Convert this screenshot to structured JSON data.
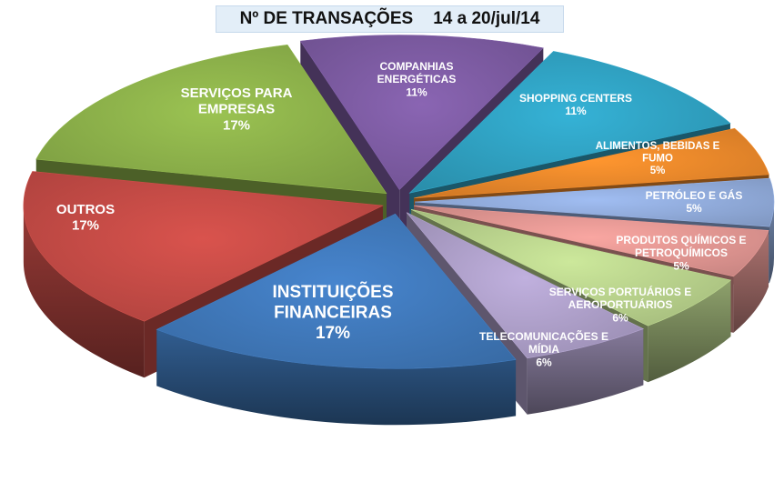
{
  "chart_data": {
    "type": "pie",
    "title": "Nº DE TRANSAÇÕES",
    "subtitle": "14 a 20/jul/14",
    "slices": [
      {
        "label": "COMPANHIAS ENERGÉTICAS",
        "value_label": "11%",
        "value": 11,
        "color": "#7b5aa0"
      },
      {
        "label": "SHOPPING CENTERS",
        "value_label": "11%",
        "value": 11,
        "color": "#2f9fbf"
      },
      {
        "label": "ALIMENTOS, BEBIDAS E FUMO",
        "value_label": "5%",
        "value": 5,
        "color": "#e8862a"
      },
      {
        "label": "PETRÓLEO E GÁS",
        "value_label": "5%",
        "value": 5,
        "color": "#8fa9d8"
      },
      {
        "label": "PRODUTOS QUÍMICOS E PETROQUÍMICOS",
        "value_label": "5%",
        "value": 5,
        "color": "#de9490"
      },
      {
        "label": "SERVIÇOS PORTUÁRIOS E AEROPORTUÁRIOS",
        "value_label": "6%",
        "value": 6,
        "color": "#b6cf8a"
      },
      {
        "label": "TELECOMUNICAÇÕES E MÍDIA",
        "value_label": "6%",
        "value": 6,
        "color": "#ab9dc6"
      },
      {
        "label": "INSTITUIÇÕES FINANCEIRAS",
        "value_label": "17%",
        "value": 17,
        "color": "#3f77b8"
      },
      {
        "label": "OUTROS",
        "value_label": "17%",
        "value": 17,
        "color": "#c24a45"
      },
      {
        "label": "SERVIÇOS PARA EMPRESAS",
        "value_label": "17%",
        "value": 17,
        "color": "#8aae49"
      }
    ]
  }
}
